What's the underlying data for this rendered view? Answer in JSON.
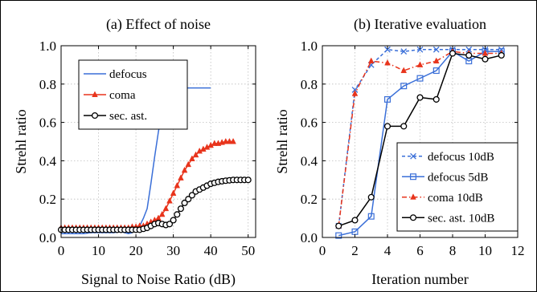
{
  "chart_data": [
    {
      "type": "line",
      "title": "(a) Effect of noise",
      "xlabel": "Signal to Noise Ratio (dB)",
      "ylabel": "Strehl ratio",
      "xlim": [
        0,
        52
      ],
      "ylim": [
        0,
        1.0
      ],
      "xticks": [
        0,
        10,
        20,
        30,
        40,
        50
      ],
      "yticks": [
        0.0,
        0.2,
        0.4,
        0.6,
        0.8,
        1.0
      ],
      "ytick_labels": [
        "0.0",
        "0.2",
        "0.4",
        "0.6",
        "0.8",
        "1.0"
      ],
      "grid": true,
      "legend_position": "top-left",
      "series": [
        {
          "name": "defocus",
          "color": "#3a6fd8",
          "linestyle": "solid",
          "marker": "none",
          "x": [
            0,
            2,
            4,
            6,
            8,
            10,
            12,
            14,
            16,
            18,
            19,
            20,
            21,
            22,
            23,
            24,
            25,
            26,
            27,
            28,
            29,
            30,
            31,
            32,
            33,
            34,
            35,
            36,
            37,
            38,
            39,
            40
          ],
          "y": [
            0.02,
            0.02,
            0.02,
            0.02,
            0.025,
            0.025,
            0.025,
            0.025,
            0.03,
            0.02,
            0.025,
            0.04,
            0.06,
            0.1,
            0.15,
            0.28,
            0.42,
            0.55,
            0.66,
            0.72,
            0.75,
            0.77,
            0.78,
            0.78,
            0.78,
            0.78,
            0.78,
            0.78,
            0.78,
            0.78,
            0.78,
            0.78
          ]
        },
        {
          "name": "coma",
          "color": "#e8341c",
          "linestyle": "solid",
          "marker": "triangle",
          "x": [
            0,
            1,
            2,
            3,
            4,
            5,
            6,
            7,
            8,
            9,
            10,
            11,
            12,
            13,
            14,
            15,
            16,
            17,
            18,
            19,
            20,
            21,
            22,
            23,
            24,
            25,
            26,
            27,
            28,
            29,
            30,
            31,
            32,
            33,
            34,
            35,
            36,
            37,
            38,
            39,
            40,
            41,
            42,
            43,
            44,
            45,
            46
          ],
          "y": [
            0.05,
            0.05,
            0.05,
            0.05,
            0.05,
            0.05,
            0.05,
            0.05,
            0.05,
            0.05,
            0.05,
            0.05,
            0.05,
            0.05,
            0.05,
            0.05,
            0.05,
            0.05,
            0.05,
            0.055,
            0.055,
            0.06,
            0.06,
            0.07,
            0.08,
            0.09,
            0.1,
            0.12,
            0.15,
            0.19,
            0.23,
            0.27,
            0.31,
            0.35,
            0.38,
            0.41,
            0.43,
            0.45,
            0.46,
            0.47,
            0.48,
            0.49,
            0.49,
            0.495,
            0.5,
            0.5,
            0.5
          ]
        },
        {
          "name": "sec. ast.",
          "color": "#000000",
          "linestyle": "solid",
          "marker": "circle",
          "x": [
            0,
            1,
            2,
            3,
            4,
            5,
            6,
            7,
            8,
            9,
            10,
            11,
            12,
            13,
            14,
            15,
            16,
            17,
            18,
            19,
            20,
            21,
            22,
            23,
            24,
            25,
            26,
            27,
            28,
            29,
            30,
            31,
            32,
            33,
            34,
            35,
            36,
            37,
            38,
            39,
            40,
            41,
            42,
            43,
            44,
            45,
            46,
            47,
            48,
            49,
            50
          ],
          "y": [
            0.04,
            0.04,
            0.04,
            0.04,
            0.04,
            0.04,
            0.04,
            0.04,
            0.04,
            0.04,
            0.04,
            0.04,
            0.04,
            0.04,
            0.04,
            0.04,
            0.04,
            0.04,
            0.04,
            0.04,
            0.04,
            0.04,
            0.045,
            0.05,
            0.06,
            0.07,
            0.075,
            0.07,
            0.065,
            0.07,
            0.09,
            0.12,
            0.15,
            0.18,
            0.2,
            0.22,
            0.24,
            0.25,
            0.26,
            0.27,
            0.28,
            0.285,
            0.29,
            0.293,
            0.296,
            0.298,
            0.3,
            0.3,
            0.3,
            0.3,
            0.3
          ]
        }
      ]
    },
    {
      "type": "line",
      "title": "(b) Iterative evaluation",
      "xlabel": "Iteration number",
      "ylabel": "Strehl ratio",
      "xlim": [
        0,
        12
      ],
      "ylim": [
        0,
        1.0
      ],
      "xticks": [
        0,
        2,
        4,
        6,
        8,
        10,
        12
      ],
      "yticks": [
        0.0,
        0.2,
        0.4,
        0.6,
        0.8,
        1.0
      ],
      "ytick_labels": [
        "0.0",
        "0.2",
        "0.4",
        "0.6",
        "0.8",
        "1.0"
      ],
      "grid": true,
      "legend_position": "bottom-right",
      "series": [
        {
          "name": "defocus 10dB",
          "color": "#3a6fd8",
          "linestyle": "dashed",
          "marker": "x",
          "x": [
            1,
            2,
            3,
            4,
            5,
            6,
            7,
            8,
            9,
            10,
            11
          ],
          "y": [
            0.06,
            0.77,
            0.9,
            0.98,
            0.97,
            0.98,
            0.98,
            0.98,
            0.98,
            0.98,
            0.98
          ]
        },
        {
          "name": "defocus 5dB",
          "color": "#3a6fd8",
          "linestyle": "solid",
          "marker": "square",
          "x": [
            1,
            2,
            3,
            4,
            5,
            6,
            7,
            8,
            9,
            10,
            11
          ],
          "y": [
            0.01,
            0.03,
            0.11,
            0.72,
            0.79,
            0.83,
            0.87,
            0.97,
            0.92,
            0.97,
            0.97
          ]
        },
        {
          "name": "coma 10dB",
          "color": "#e8341c",
          "linestyle": "dash-dot",
          "marker": "triangle",
          "x": [
            1,
            2,
            3,
            4,
            5,
            6,
            7,
            8,
            9,
            10,
            11
          ],
          "y": [
            0.06,
            0.75,
            0.92,
            0.91,
            0.87,
            0.9,
            0.92,
            0.97,
            0.96,
            0.96,
            0.96
          ]
        },
        {
          "name": "sec. ast. 10dB",
          "color": "#000000",
          "linestyle": "solid",
          "marker": "circle",
          "x": [
            1,
            2,
            3,
            4,
            5,
            6,
            7,
            8,
            9,
            10,
            11
          ],
          "y": [
            0.06,
            0.09,
            0.21,
            0.58,
            0.58,
            0.73,
            0.72,
            0.96,
            0.95,
            0.93,
            0.95
          ]
        }
      ]
    }
  ]
}
